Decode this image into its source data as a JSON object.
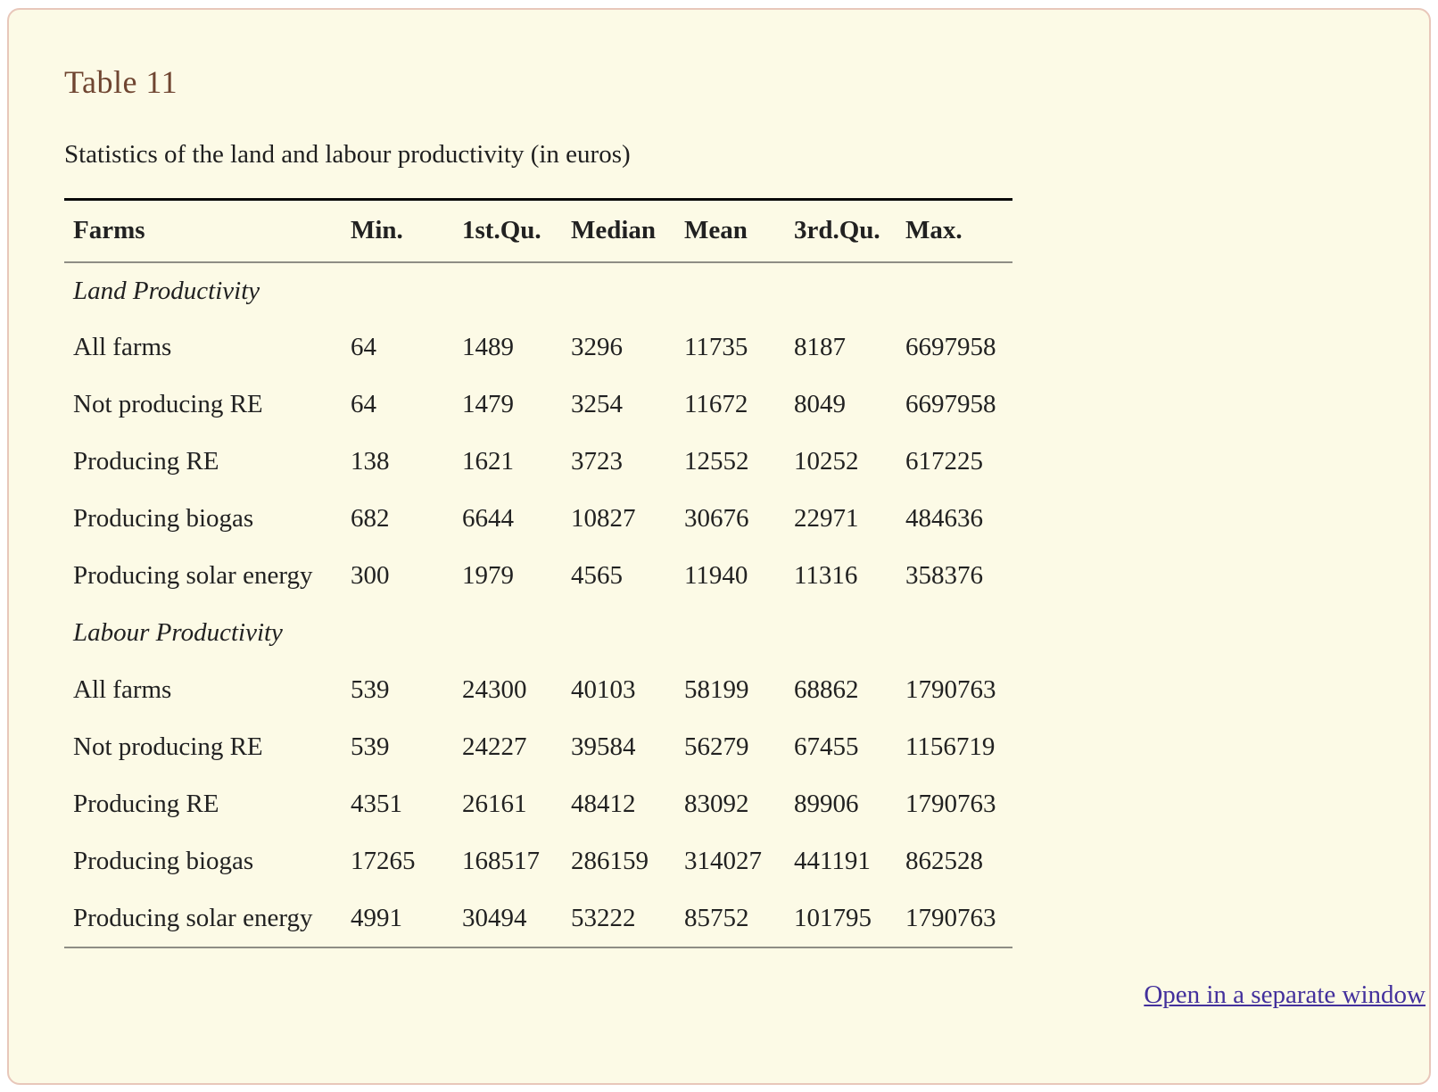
{
  "card": {
    "title": "Table 11",
    "caption": "Statistics of the land and labour productivity (in euros)",
    "link_label": "Open in a separate window"
  },
  "table": {
    "columns": [
      "Farms",
      "Min.",
      "1st.Qu.",
      "Median",
      "Mean",
      "3rd.Qu.",
      "Max."
    ],
    "sections": [
      {
        "label": "Land Productivity",
        "rows": [
          {
            "label": "All farms",
            "values": [
              "64",
              "1489",
              "3296",
              "11735",
              "8187",
              "6697958"
            ]
          },
          {
            "label": "Not producing RE",
            "values": [
              "64",
              "1479",
              "3254",
              "11672",
              "8049",
              "6697958"
            ]
          },
          {
            "label": "Producing RE",
            "values": [
              "138",
              "1621",
              "3723",
              "12552",
              "10252",
              "617225"
            ]
          },
          {
            "label": "Producing biogas",
            "values": [
              "682",
              "6644",
              "10827",
              "30676",
              "22971",
              "484636"
            ]
          },
          {
            "label": "Producing solar energy",
            "values": [
              "300",
              "1979",
              "4565",
              "11940",
              "11316",
              "358376"
            ]
          }
        ]
      },
      {
        "label": "Labour Productivity",
        "rows": [
          {
            "label": "All farms",
            "values": [
              "539",
              "24300",
              "40103",
              "58199",
              "68862",
              "1790763"
            ]
          },
          {
            "label": "Not producing RE",
            "values": [
              "539",
              "24227",
              "39584",
              "56279",
              "67455",
              "1156719"
            ]
          },
          {
            "label": "Producing RE",
            "values": [
              "4351",
              "26161",
              "48412",
              "83092",
              "89906",
              "1790763"
            ]
          },
          {
            "label": "Producing biogas",
            "values": [
              "17265",
              "168517",
              "286159",
              "314027",
              "441191",
              "862528"
            ]
          },
          {
            "label": "Producing solar energy",
            "values": [
              "4991",
              "30494",
              "53222",
              "85752",
              "101795",
              "1790763"
            ]
          }
        ]
      }
    ]
  },
  "colors": {
    "card_background": "#fcfae6",
    "card_border": "#e8c7ba",
    "title_brown": "#6f4531",
    "body_text": "#1f1f1f",
    "link_purple": "#43309c",
    "rule_black": "#0a0a0a",
    "rule_gray": "#8e8d85"
  }
}
